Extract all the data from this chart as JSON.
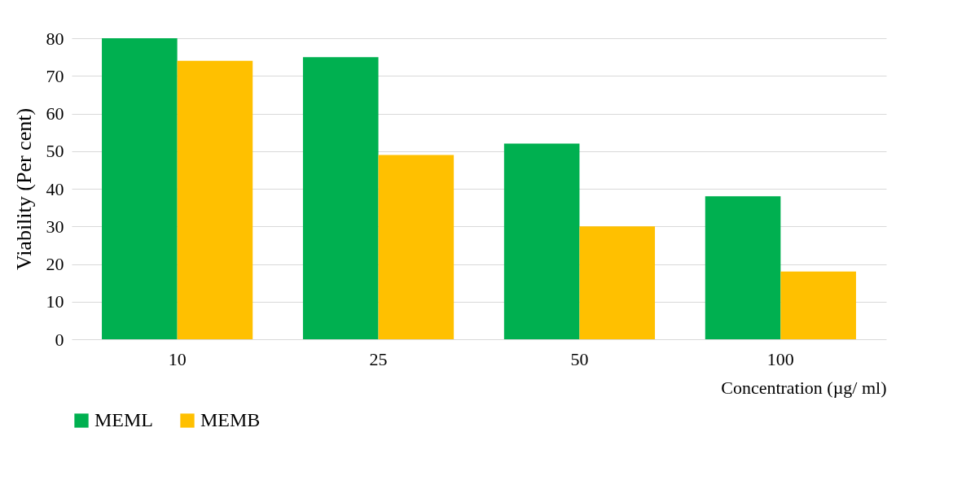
{
  "chart_data": {
    "type": "bar",
    "xlabel": "Concentration (µg/ ml)",
    "ylabel": "Viability (Per cent)",
    "categories": [
      "10",
      "25",
      "50",
      "100"
    ],
    "series": [
      {
        "name": "MEML",
        "color": "#00b050",
        "values": [
          80,
          75,
          52,
          38
        ]
      },
      {
        "name": "MEMB",
        "color": "#ffc000",
        "values": [
          74,
          49,
          30,
          18
        ]
      }
    ],
    "ylim": [
      0,
      80
    ],
    "yticks": [
      0,
      10,
      20,
      30,
      40,
      50,
      60,
      70,
      80
    ],
    "grid": "y",
    "legend": "bottom"
  }
}
